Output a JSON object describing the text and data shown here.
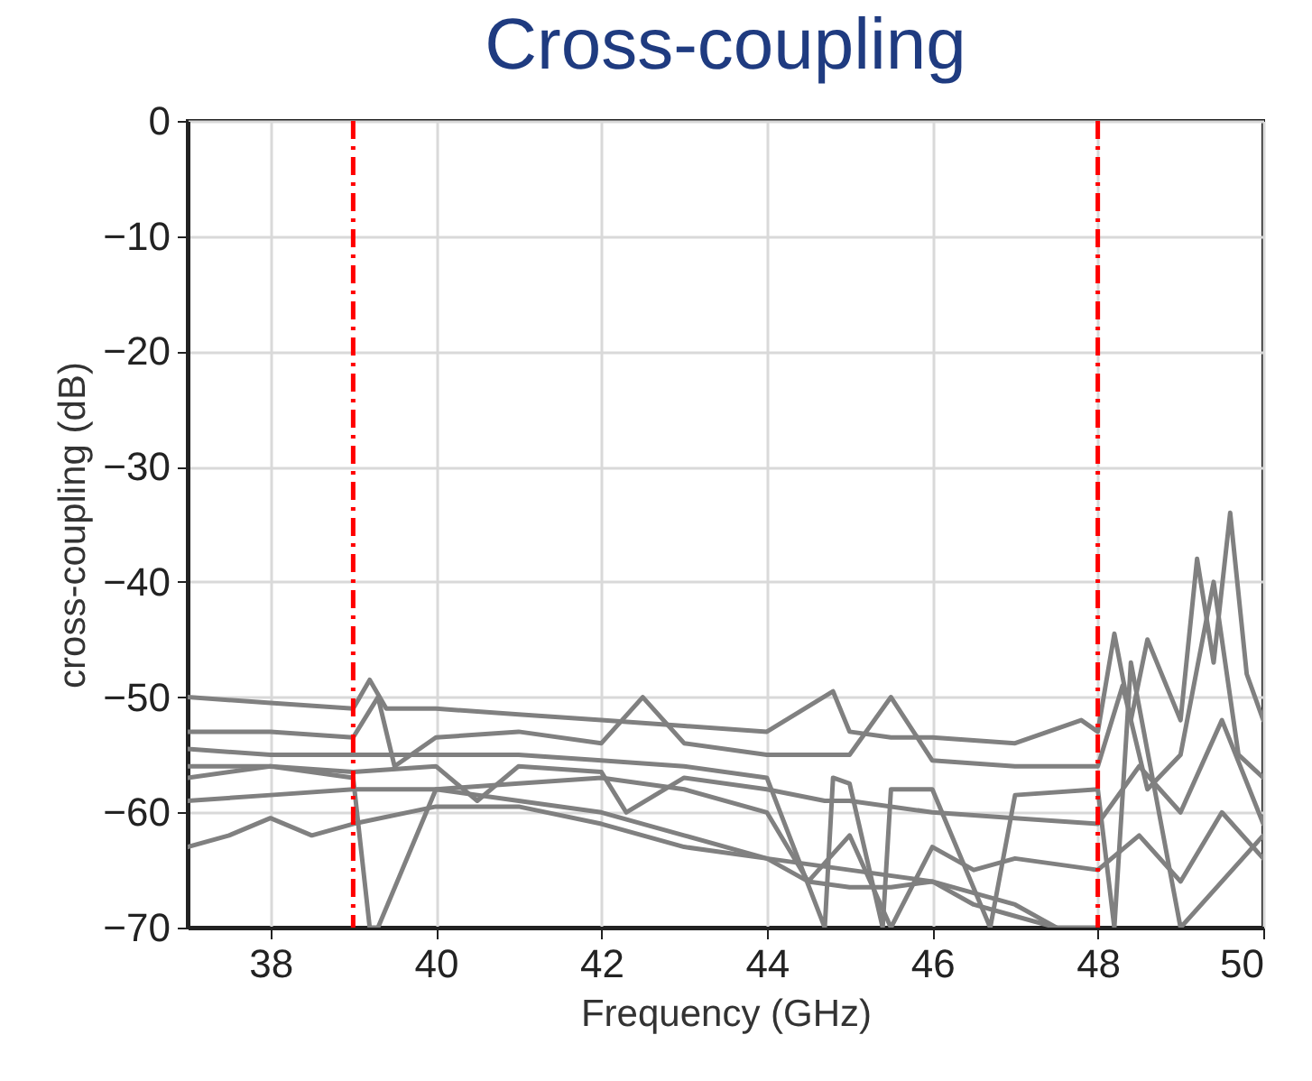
{
  "chart_data": {
    "type": "line",
    "title": "Cross-coupling",
    "xlabel": "Frequency (GHz)",
    "ylabel": "cross-coupling (dB)",
    "xlim": [
      37,
      50
    ],
    "xticks": [
      38,
      40,
      42,
      44,
      46,
      48,
      50
    ],
    "ylim": [
      -70,
      0
    ],
    "yticks": [
      -70,
      -60,
      -50,
      -40,
      -30,
      -20,
      -10,
      0
    ],
    "grid": true,
    "legend": false,
    "marker": "none",
    "line_style": "solid",
    "ref_lines": [
      {
        "axis": "x",
        "value": 39,
        "color": "#ff0000",
        "line_style": "dashed"
      },
      {
        "axis": "x",
        "value": 48,
        "color": "#ff0000",
        "line_style": "dashed"
      }
    ],
    "series": [
      {
        "color": "#808080",
        "x": [
          37,
          38,
          39,
          39.2,
          39.4,
          40,
          41,
          42,
          43,
          44,
          44.8,
          45,
          45.5,
          46,
          47,
          47.8,
          48,
          48.2,
          48.4,
          48.6,
          49,
          49.2,
          49.4,
          49.6,
          49.8,
          50
        ],
        "values": [
          -50,
          -50.5,
          -51,
          -48.5,
          -51,
          -51,
          -51.5,
          -52,
          -52.5,
          -53,
          -49.5,
          -53,
          -53.5,
          -53.5,
          -54,
          -52,
          -53,
          -44.5,
          -52,
          -45,
          -52,
          -38,
          -47,
          -34,
          -48,
          -52
        ]
      },
      {
        "color": "#808080",
        "x": [
          37,
          38,
          39,
          39.3,
          39.5,
          40,
          41,
          42,
          42.5,
          43,
          44,
          45,
          45.5,
          46,
          47,
          48,
          48.3,
          48.6,
          49,
          49.4,
          49.7,
          50
        ],
        "values": [
          -53,
          -53,
          -53.5,
          -50,
          -56,
          -53.5,
          -53,
          -54,
          -50,
          -54,
          -55,
          -55,
          -50,
          -55.5,
          -56,
          -56,
          -49,
          -58,
          -55,
          -40,
          -55,
          -57
        ]
      },
      {
        "color": "#808080",
        "x": [
          37,
          38,
          39,
          40,
          40.5,
          41,
          42,
          42.3,
          43,
          44,
          44.7,
          45,
          46,
          47,
          48,
          48.5,
          49,
          49.5,
          50
        ],
        "values": [
          -56,
          -56,
          -56.5,
          -56,
          -59,
          -56,
          -56.5,
          -60,
          -57,
          -58,
          -59,
          -59,
          -60,
          -60.5,
          -61,
          -56,
          -60,
          -52,
          -61
        ]
      },
      {
        "color": "#808080",
        "x": [
          37,
          38,
          39,
          40,
          41,
          42,
          43,
          44,
          44.5,
          45,
          45.5,
          46,
          46.5,
          47,
          48,
          48.5,
          49,
          49.5,
          50
        ],
        "values": [
          -59,
          -58.5,
          -58,
          -58,
          -57.5,
          -57,
          -58,
          -60,
          -66,
          -62,
          -70,
          -63,
          -65,
          -64,
          -65,
          -62,
          -66,
          -60,
          -64
        ]
      },
      {
        "color": "#808080",
        "x": [
          37,
          37.5,
          38,
          38.5,
          39,
          40,
          41,
          42,
          43,
          44,
          44.5,
          45,
          45.5,
          46,
          46.5,
          47,
          47.5,
          48
        ],
        "values": [
          -63,
          -62,
          -60.5,
          -62,
          -61,
          -59.5,
          -59.5,
          -61,
          -63,
          -64,
          -66,
          -66.5,
          -66.5,
          -66,
          -67,
          -68,
          -70,
          -70
        ]
      },
      {
        "color": "#808080",
        "x": [
          37,
          38,
          39,
          39.2,
          39.3,
          40,
          41,
          42,
          43,
          44,
          45,
          46,
          46.5,
          47,
          47.5
        ],
        "values": [
          -57,
          -56,
          -57,
          -70,
          -70,
          -58,
          -59,
          -60,
          -62,
          -64,
          -65,
          -66,
          -68,
          -69,
          -70
        ]
      },
      {
        "color": "#808080",
        "x": [
          37,
          38,
          39,
          40,
          41,
          42,
          43,
          44,
          44.7,
          44.8,
          45,
          45.4,
          45.5,
          46,
          46.7,
          47,
          48,
          48.2,
          48.4,
          49,
          50
        ],
        "values": [
          -54.5,
          -55,
          -55,
          -55,
          -55,
          -55.5,
          -56,
          -57,
          -70,
          -57,
          -57.5,
          -70,
          -58,
          -58,
          -70,
          -58.5,
          -58,
          -70,
          -47,
          -70,
          -62
        ]
      }
    ]
  }
}
